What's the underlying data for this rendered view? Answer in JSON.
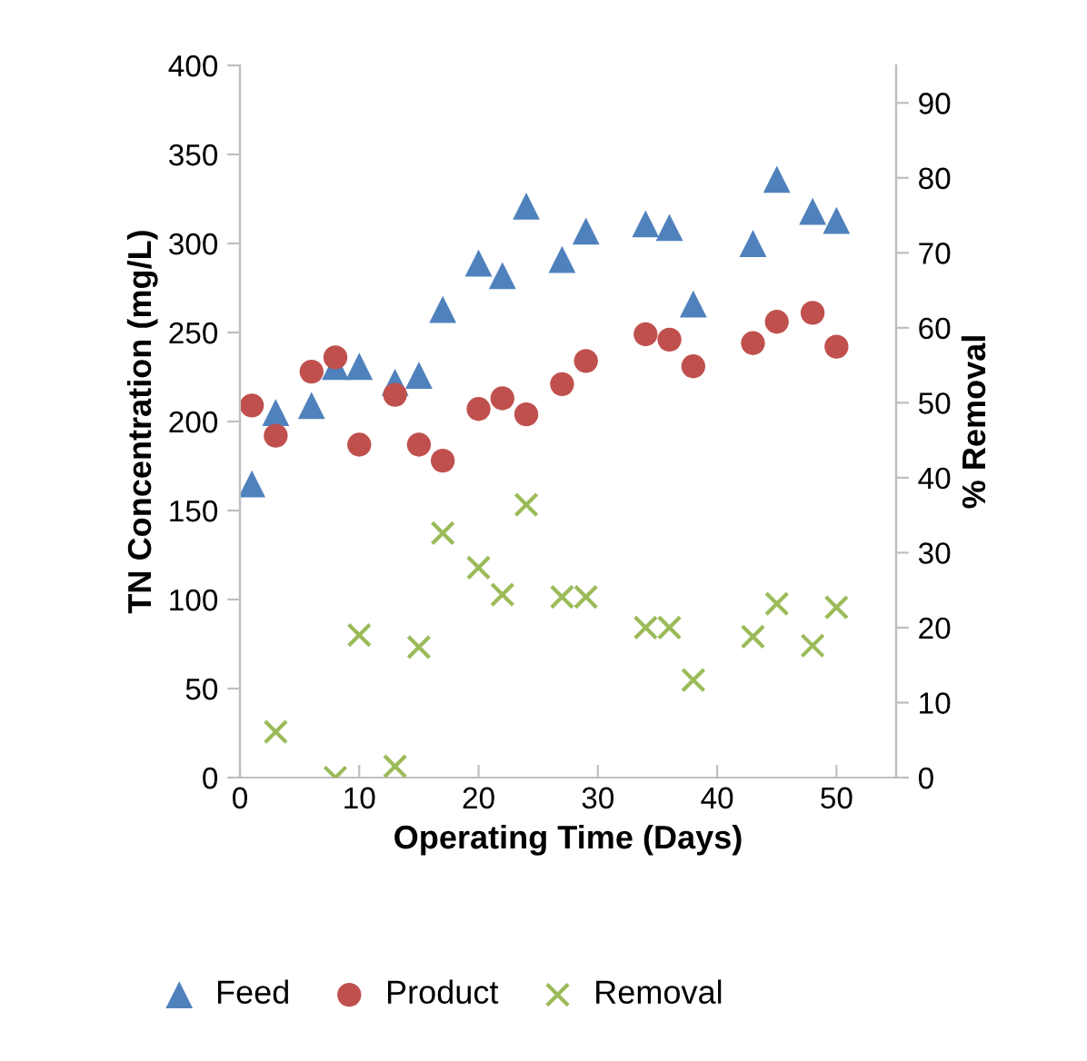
{
  "chart_data": {
    "type": "scatter",
    "xlabel": "Operating Time (Days)",
    "ylabel": "TN Concentration (mg/L)",
    "y2label": "% Removal",
    "xlim": [
      0,
      55
    ],
    "xticks": [
      0,
      10,
      20,
      30,
      40,
      50
    ],
    "ylim": [
      0,
      400
    ],
    "yticks": [
      0,
      50,
      100,
      150,
      200,
      250,
      300,
      350,
      400
    ],
    "y2lim": [
      0,
      95
    ],
    "y2ticks": [
      0,
      10,
      20,
      30,
      40,
      50,
      60,
      70,
      80,
      90
    ],
    "grid": false,
    "legend": "bottom",
    "series": [
      {
        "name": "Feed",
        "color": "#4f81bd",
        "marker": "triangle",
        "x": [
          1,
          3,
          6,
          8,
          10,
          13,
          15,
          17,
          20,
          22,
          24,
          27,
          29,
          34,
          36,
          38,
          43,
          45,
          48,
          50
        ],
        "values": [
          165,
          205,
          209,
          231,
          231,
          222,
          226,
          263,
          289,
          282,
          321,
          291,
          307,
          311,
          309,
          266,
          300,
          336,
          318,
          313
        ]
      },
      {
        "name": "Product",
        "color": "#c0504d",
        "marker": "circle",
        "x": [
          1,
          3,
          6,
          8,
          10,
          13,
          15,
          17,
          20,
          22,
          24,
          27,
          29,
          34,
          36,
          38,
          43,
          45,
          48,
          50
        ],
        "values": [
          209,
          192,
          228,
          236,
          187,
          215,
          187,
          178,
          207,
          213,
          204,
          221,
          234,
          249,
          246,
          231,
          244,
          256,
          261,
          242
        ]
      },
      {
        "name": "Removal",
        "color": "#9bbb59",
        "marker": "cross",
        "axis": "y2",
        "x": [
          3,
          8,
          10,
          13,
          15,
          17,
          20,
          22,
          24,
          27,
          29,
          34,
          36,
          38,
          43,
          45,
          48,
          50
        ],
        "values": [
          6.1,
          0,
          19,
          1.5,
          17.4,
          32.6,
          28,
          24.4,
          36.4,
          24.1,
          24.1,
          20,
          20,
          13,
          18.8,
          23.2,
          17.6,
          22.7
        ]
      }
    ]
  }
}
